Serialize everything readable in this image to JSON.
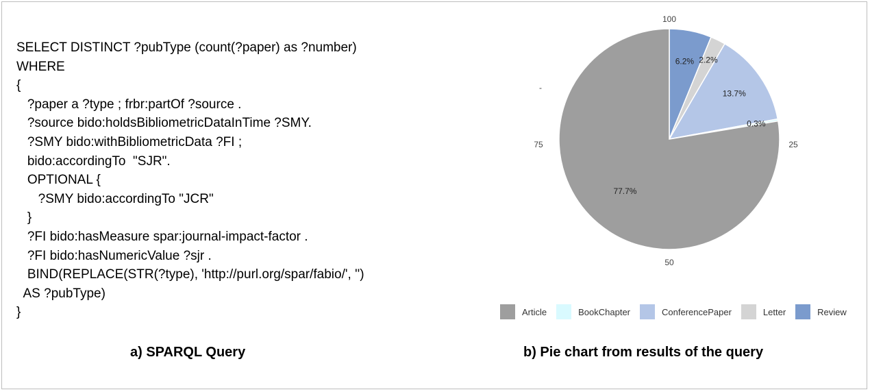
{
  "query": {
    "lines": [
      "SELECT DISTINCT ?pubType (count(?paper) as ?number)",
      "WHERE",
      "{",
      "   ?paper a ?type ; frbr:partOf ?source .",
      "   ?source bido:holdsBibliometricDataInTime ?SMY.",
      "   ?SMY bido:withBibliometricData ?FI ;",
      "   bido:accordingTo  \"SJR\".",
      "   OPTIONAL {",
      "      ?SMY bido:accordingTo \"JCR\"",
      "   }",
      "   ?FI bido:hasMeasure spar:journal-impact-factor .",
      "   ?FI bido:hasNumericValue ?sjr .",
      "   BIND(REPLACE(STR(?type), 'http://purl.org/spar/fabio/', '')",
      "  AS ?pubType)",
      "}"
    ]
  },
  "captions": {
    "a": "a) SPARQL Query",
    "b": "b) Pie chart from results of the query"
  },
  "chart_data": {
    "type": "pie",
    "title": "",
    "categories": [
      "Article",
      "BookChapter",
      "ConferencePaper",
      "Letter",
      "Review"
    ],
    "values": [
      77.7,
      0.3,
      13.7,
      2.2,
      6.2
    ],
    "value_labels": [
      "77.7%",
      "0.3%",
      "13.7%",
      "2.2%",
      "6.2%"
    ],
    "colors": [
      "#9e9e9e",
      "#d9faff",
      "#b4c6e7",
      "#d4d4d4",
      "#7b9bcd"
    ],
    "radial_ticks": [
      "100",
      "25",
      "50",
      "75",
      "-"
    ],
    "legend_position": "bottom"
  }
}
